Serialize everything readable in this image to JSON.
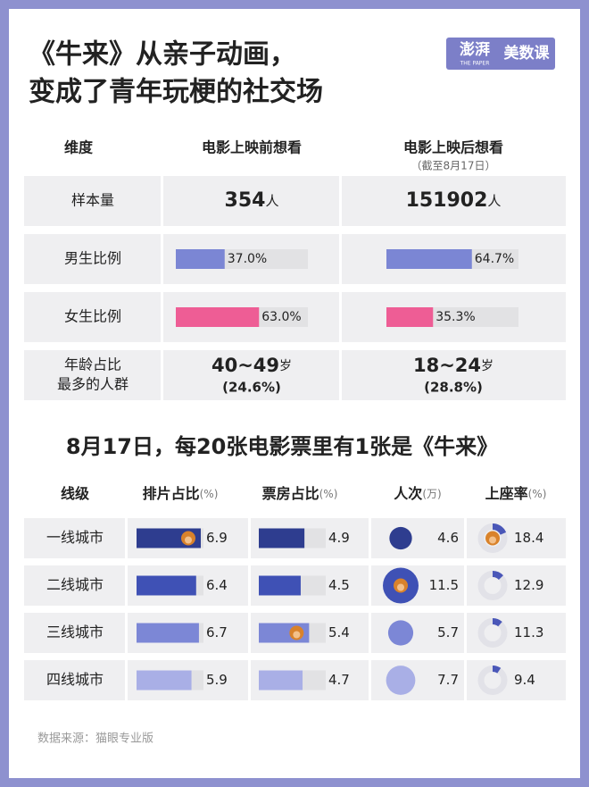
{
  "header": {
    "title": [
      "《牛来》从亲子动画，",
      "变成了青年玩梗的社交场"
    ],
    "logo": {
      "main": "澎湃",
      "sub": "THE PAPER",
      "brand": "美数课"
    }
  },
  "table1": {
    "columns": [
      "维度",
      "电影上映前想看",
      "电影上映后想看"
    ],
    "column_note": "（截至8月17日）",
    "rows": [
      {
        "label": [
          "样本量"
        ],
        "before": {
          "value": 354,
          "unit": "人"
        },
        "after": {
          "value": 151902,
          "unit": "人"
        }
      },
      {
        "label": [
          "男生比例"
        ],
        "color": "#7b86d4",
        "before": {
          "value": 37.0,
          "label": "37.0%"
        },
        "after": {
          "value": 64.7,
          "label": "64.7%"
        }
      },
      {
        "label": [
          "女生比例"
        ],
        "color": "#ee5d95",
        "before": {
          "value": 63.0,
          "label": "63.0%"
        },
        "after": {
          "value": 35.3,
          "label": "35.3%"
        }
      },
      {
        "label": [
          "年龄占比",
          "最多的人群"
        ],
        "before": {
          "range": "40~49",
          "unit": "岁",
          "share": {
            "value": 24.6,
            "label": "(24.6%)"
          }
        },
        "after": {
          "range": "18~24",
          "unit": "岁",
          "share": {
            "value": 28.8,
            "label": "(28.8%)"
          }
        }
      }
    ]
  },
  "table2": {
    "title": "8月17日，每20张电影票里有1张是《牛来》",
    "columns": [
      {
        "name": "线级"
      },
      {
        "name": "排片占比",
        "unit": "(%)"
      },
      {
        "name": "票房占比",
        "unit": "(%)"
      },
      {
        "name": "人次",
        "unit": "(万)"
      },
      {
        "name": "上座率",
        "unit": "(%)"
      }
    ],
    "rows": [
      {
        "city": "一线城市",
        "color": "#2e3d8f",
        "values": [
          6.9,
          4.9,
          4.6,
          18.4
        ]
      },
      {
        "city": "二线城市",
        "color": "#3f51b5",
        "values": [
          6.4,
          4.5,
          11.5,
          12.9
        ]
      },
      {
        "city": "三线城市",
        "color": "#7c87d6",
        "values": [
          6.7,
          5.4,
          5.7,
          11.3
        ]
      },
      {
        "city": "四线城市",
        "color": "#a9afe6",
        "values": [
          5.9,
          4.7,
          7.7,
          9.4
        ]
      }
    ]
  },
  "source": "数据来源：猫眼专业版"
}
